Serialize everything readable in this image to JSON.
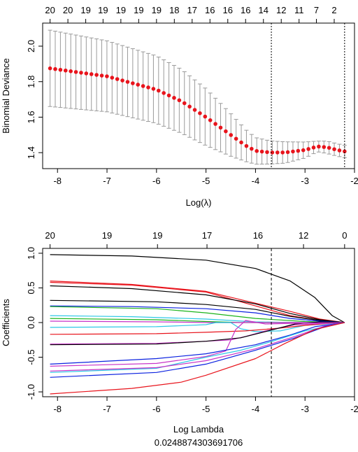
{
  "chart_data": [
    {
      "type": "line",
      "title": "",
      "xlabel": "Log(λ)",
      "ylabel": "Binomial Deviance",
      "xlim": [
        -8.3,
        -2.0
      ],
      "ylim": [
        1.31,
        2.13
      ],
      "x_ticks": [
        -8,
        -7,
        -6,
        -5,
        -4,
        -3,
        -2
      ],
      "y_ticks": [
        1.4,
        1.6,
        1.8,
        2.0
      ],
      "top_ticks": [
        {
          "x": -8.15,
          "label": "20"
        },
        {
          "x": -7.79,
          "label": "20"
        },
        {
          "x": -7.43,
          "label": "19"
        },
        {
          "x": -7.08,
          "label": "19"
        },
        {
          "x": -6.72,
          "label": "19"
        },
        {
          "x": -6.36,
          "label": "19"
        },
        {
          "x": -6.0,
          "label": "19"
        },
        {
          "x": -5.64,
          "label": "18"
        },
        {
          "x": -5.28,
          "label": "17"
        },
        {
          "x": -4.92,
          "label": "16"
        },
        {
          "x": -4.56,
          "label": "16"
        },
        {
          "x": -4.2,
          "label": "16"
        },
        {
          "x": -3.84,
          "label": "14"
        },
        {
          "x": -3.48,
          "label": "12"
        },
        {
          "x": -3.12,
          "label": "11"
        },
        {
          "x": -2.77,
          "label": "7"
        },
        {
          "x": -2.41,
          "label": "2"
        }
      ],
      "vlines": [
        -3.68,
        -2.2
      ],
      "series": [
        {
          "x": [
            -8.15,
            -7.0,
            -6.0,
            -5.5,
            -5.0,
            -4.5,
            -4.2,
            -4.0,
            -3.7,
            -3.4,
            -3.0,
            -2.75,
            -2.55,
            -2.35,
            -2.2
          ],
          "y": [
            1.875,
            1.83,
            1.755,
            1.69,
            1.6,
            1.5,
            1.44,
            1.41,
            1.401,
            1.401,
            1.415,
            1.435,
            1.43,
            1.415,
            1.407
          ],
          "err": [
            0.215,
            0.2,
            0.19,
            0.18,
            0.16,
            0.12,
            0.09,
            0.075,
            0.065,
            0.06,
            0.045,
            0.03,
            0.035,
            0.035,
            0.035
          ],
          "color": "#e8141c"
        }
      ]
    },
    {
      "type": "line",
      "title": "",
      "xlabel": "Log Lambda",
      "subtitle": "0.0248874303691706",
      "ylabel": "Coefficients",
      "xlim": [
        -8.3,
        -2.0
      ],
      "ylim": [
        -1.07,
        1.07
      ],
      "x_ticks": [
        -8,
        -7,
        -6,
        -5,
        -4,
        -3,
        -2
      ],
      "y_ticks": [
        -1.0,
        -0.5,
        0.0,
        0.5,
        1.0
      ],
      "top_ticks": [
        {
          "x": -8.15,
          "label": "20"
        },
        {
          "x": -7.0,
          "label": "19"
        },
        {
          "x": -5.98,
          "label": "19"
        },
        {
          "x": -4.98,
          "label": "17"
        },
        {
          "x": -3.95,
          "label": "16"
        },
        {
          "x": -3.03,
          "label": "12"
        },
        {
          "x": -2.2,
          "label": "0"
        }
      ],
      "vlines": [
        -3.68
      ],
      "series": [
        {
          "color": "#000000",
          "x": [
            -8.15,
            -6.5,
            -5.0,
            -4.0,
            -3.3,
            -2.8,
            -2.45,
            -2.2
          ],
          "y": [
            0.98,
            0.96,
            0.9,
            0.78,
            0.6,
            0.36,
            0.1,
            0.0
          ]
        },
        {
          "color": "#e8141c",
          "x": [
            -8.15,
            -6.5,
            -5.0,
            -4.0,
            -3.3,
            -2.7,
            -2.2
          ],
          "y": [
            0.6,
            0.55,
            0.45,
            0.28,
            0.16,
            0.05,
            0.0
          ]
        },
        {
          "color": "#e8141c",
          "x": [
            -8.15,
            -6.5,
            -5.0,
            -4.0,
            -3.3,
            -2.7,
            -2.2
          ],
          "y": [
            0.58,
            0.54,
            0.44,
            0.24,
            0.1,
            0.03,
            0.0
          ]
        },
        {
          "color": "#000000",
          "x": [
            -8.15,
            -6.5,
            -5.0,
            -4.0,
            -3.3,
            -2.7,
            -2.2
          ],
          "y": [
            0.53,
            0.49,
            0.4,
            0.27,
            0.13,
            0.04,
            0.0
          ]
        },
        {
          "color": "#000000",
          "x": [
            -8.15,
            -6.0,
            -5.0,
            -4.0,
            -3.3,
            -2.7,
            -2.2
          ],
          "y": [
            0.32,
            0.3,
            0.26,
            0.19,
            0.09,
            0.03,
            0.0
          ]
        },
        {
          "color": "#0b22e0",
          "x": [
            -8.15,
            -6.5,
            -5.0,
            -4.0,
            -3.3,
            -2.7,
            -2.2
          ],
          "y": [
            0.24,
            0.23,
            0.2,
            0.14,
            0.06,
            0.02,
            0.0
          ]
        },
        {
          "color": "#1bb41b",
          "x": [
            -8.15,
            -6.0,
            -5.0,
            -4.0,
            -3.0,
            -2.6,
            -2.2
          ],
          "y": [
            0.23,
            0.2,
            0.14,
            0.06,
            0.015,
            0.005,
            0.0
          ]
        },
        {
          "color": "#2ec8e6",
          "x": [
            -8.15,
            -6.5,
            -5.0,
            -4.0,
            -3.2,
            -2.2
          ],
          "y": [
            0.1,
            0.085,
            0.05,
            0.01,
            0.0,
            0.0
          ]
        },
        {
          "color": "#1bb41b",
          "x": [
            -8.15,
            -6.0,
            -5.0,
            -4.3,
            -3.5,
            -2.8,
            -2.2
          ],
          "y": [
            0.06,
            0.04,
            0.015,
            0.0,
            0.0,
            0.0,
            0.0
          ]
        },
        {
          "color": "#c833c8",
          "x": [
            -8.15,
            -6.0,
            -4.9,
            -4.7,
            -3.5,
            -2.2
          ],
          "y": [
            0.02,
            0.01,
            0.0,
            0.0,
            0.0,
            0.0
          ]
        },
        {
          "color": "#2ec8e6",
          "x": [
            -8.15,
            -6.0,
            -5.0,
            -4.8,
            -4.5,
            -4.3,
            -4.0,
            -3.5,
            -3.0,
            -2.2
          ],
          "y": [
            -0.07,
            -0.06,
            -0.03,
            0.0,
            0.0,
            -0.09,
            -0.13,
            -0.12,
            -0.04,
            0.0
          ]
        },
        {
          "color": "#e8141c",
          "x": [
            -8.15,
            -6.0,
            -5.0,
            -4.2,
            -3.5,
            -3.0,
            -2.5,
            -2.2
          ],
          "y": [
            -0.17,
            -0.16,
            -0.14,
            -0.12,
            -0.08,
            -0.04,
            -0.01,
            0.0
          ]
        },
        {
          "color": "#c833c8",
          "x": [
            -8.15,
            -6.0,
            -5.0,
            -4.5,
            -4.2,
            -3.8,
            -3.2,
            -2.2
          ],
          "y": [
            -0.31,
            -0.3,
            -0.27,
            -0.25,
            -0.2,
            -0.12,
            -0.03,
            0.0
          ]
        },
        {
          "color": "#000000",
          "x": [
            -8.15,
            -6.0,
            -5.0,
            -4.3,
            -3.8,
            -3.2,
            -2.7,
            -2.2
          ],
          "y": [
            -0.32,
            -0.31,
            -0.27,
            -0.22,
            -0.13,
            -0.02,
            0.01,
            0.0
          ]
        },
        {
          "color": "#c833c8",
          "x": [
            -8.15,
            -6.0,
            -5.0,
            -4.8,
            -4.6,
            -4.4,
            -4.2,
            -3.8,
            -3.2,
            -2.2
          ],
          "y": [
            -0.63,
            -0.59,
            -0.49,
            -0.45,
            -0.41,
            -0.1,
            0.03,
            -0.02,
            -0.01,
            0.0
          ]
        },
        {
          "color": "#0b22e0",
          "x": [
            -8.15,
            -6.0,
            -5.0,
            -4.0,
            -3.3,
            -2.8,
            -2.2
          ],
          "y": [
            -0.6,
            -0.52,
            -0.45,
            -0.32,
            -0.18,
            -0.06,
            0.0
          ]
        },
        {
          "color": "#2ec8e6",
          "x": [
            -8.15,
            -6.0,
            -5.0,
            -4.3,
            -3.7,
            -3.0,
            -2.2
          ],
          "y": [
            -0.72,
            -0.66,
            -0.5,
            -0.4,
            -0.28,
            -0.12,
            0.0
          ]
        },
        {
          "color": "#c833c8",
          "x": [
            -8.15,
            -6.0,
            -5.0,
            -4.0,
            -3.2,
            -2.6,
            -2.2
          ],
          "y": [
            -0.7,
            -0.65,
            -0.55,
            -0.38,
            -0.2,
            -0.05,
            0.0
          ]
        },
        {
          "color": "#0b22e0",
          "x": [
            -8.15,
            -6.0,
            -5.0,
            -4.0,
            -3.2,
            -2.6,
            -2.2
          ],
          "y": [
            -0.79,
            -0.72,
            -0.6,
            -0.4,
            -0.22,
            -0.06,
            0.0
          ]
        },
        {
          "color": "#e8141c",
          "x": [
            -8.15,
            -6.5,
            -5.5,
            -5.0,
            -4.0,
            -3.4,
            -2.8,
            -2.2
          ],
          "y": [
            -1.03,
            -0.95,
            -0.86,
            -0.76,
            -0.52,
            -0.3,
            -0.1,
            0.0
          ]
        }
      ]
    }
  ]
}
